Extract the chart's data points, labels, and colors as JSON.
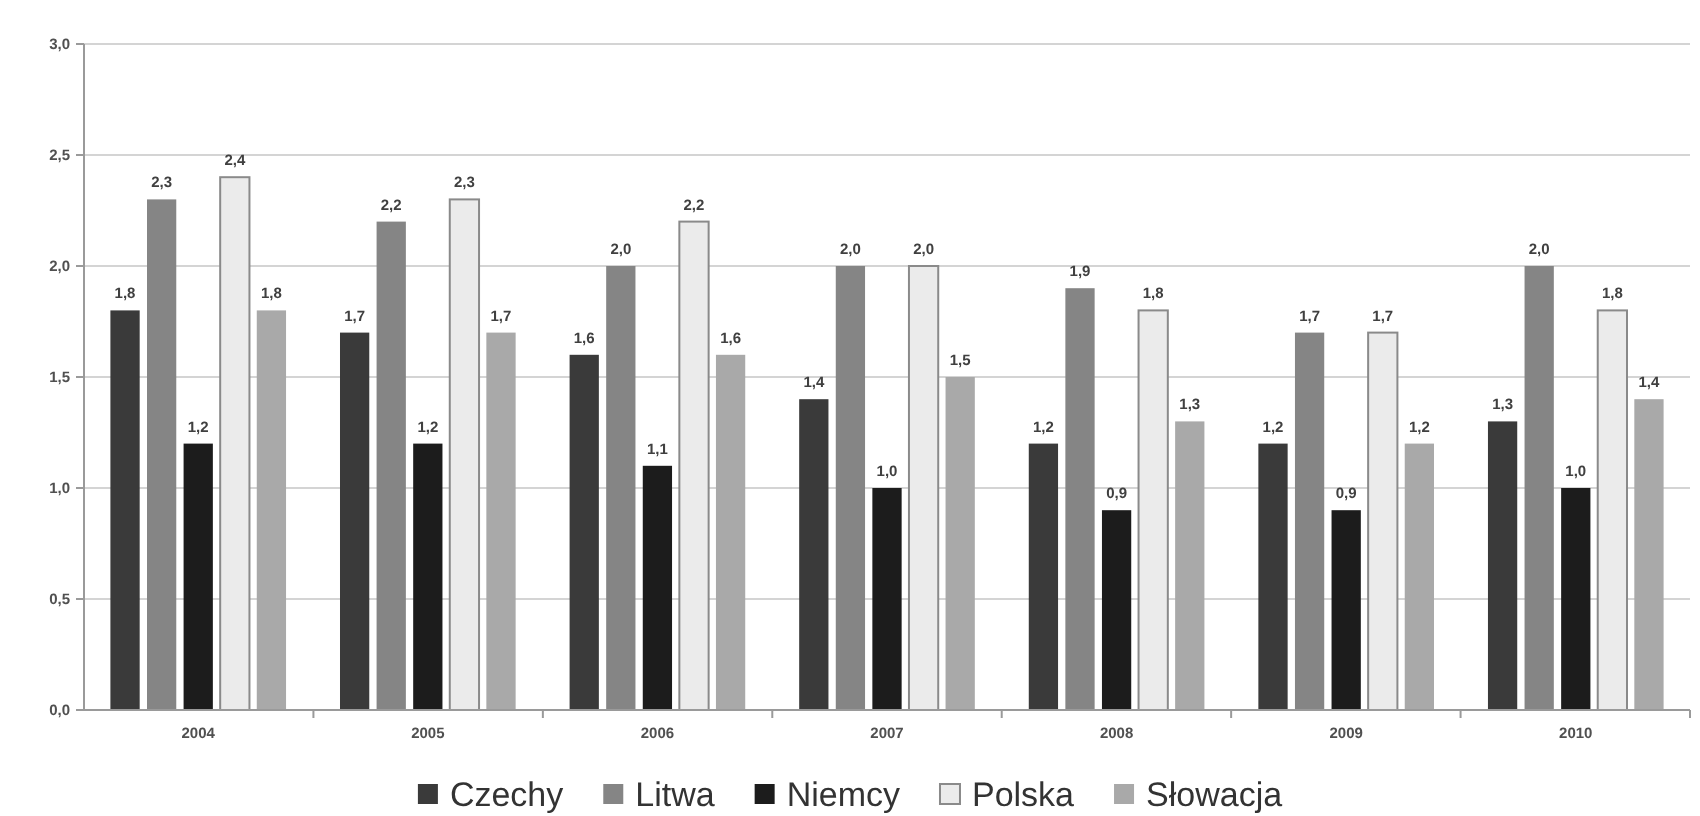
{
  "chart_data": {
    "type": "bar",
    "categories": [
      "2004",
      "2005",
      "2006",
      "2007",
      "2008",
      "2009",
      "2010"
    ],
    "series": [
      {
        "name": "Czechy",
        "color": "#3a3a3a",
        "values": [
          1.8,
          1.7,
          1.6,
          1.4,
          1.2,
          1.2,
          1.3
        ],
        "value_labels": [
          "1,8",
          "1,7",
          "1,6",
          "1,4",
          "1,2",
          "1,2",
          "1,3"
        ]
      },
      {
        "name": "Litwa",
        "color": "#858585",
        "values": [
          2.3,
          2.2,
          2.0,
          2.0,
          1.9,
          1.7,
          2.0
        ],
        "value_labels": [
          "2,3",
          "2,2",
          "2,0",
          "2,0",
          "1,9",
          "1,7",
          "2,0"
        ]
      },
      {
        "name": "Niemcy",
        "color": "#1c1c1c",
        "values": [
          1.2,
          1.2,
          1.1,
          1.0,
          0.9,
          0.9,
          1.0
        ],
        "value_labels": [
          "1,2",
          "1,2",
          "1,1",
          "1,0",
          "0,9",
          "0,9",
          "1,0"
        ]
      },
      {
        "name": "Polska",
        "color": "#ebebeb",
        "values": [
          2.4,
          2.3,
          2.2,
          2.0,
          1.8,
          1.7,
          1.8
        ],
        "value_labels": [
          "2,4",
          "2,3",
          "2,2",
          "2,0",
          "1,8",
          "1,7",
          "1,8"
        ]
      },
      {
        "name": "Słowacja",
        "color": "#a9a9a9",
        "values": [
          1.8,
          1.7,
          1.6,
          1.5,
          1.3,
          1.2,
          1.4
        ],
        "value_labels": [
          "1,8",
          "1,7",
          "1,6",
          "1,5",
          "1,3",
          "1,2",
          "1,4"
        ]
      }
    ],
    "ylim": [
      0,
      3
    ],
    "yticks": [
      {
        "value": 0,
        "label": "0,0"
      },
      {
        "value": 0.5,
        "label": "0,5"
      },
      {
        "value": 1,
        "label": "1,0"
      },
      {
        "value": 1.5,
        "label": "1,5"
      },
      {
        "value": 2,
        "label": "2,0"
      },
      {
        "value": 2.5,
        "label": "2,5"
      },
      {
        "value": 3,
        "label": "3,0"
      }
    ],
    "grid": "y",
    "legend": "bottom"
  }
}
